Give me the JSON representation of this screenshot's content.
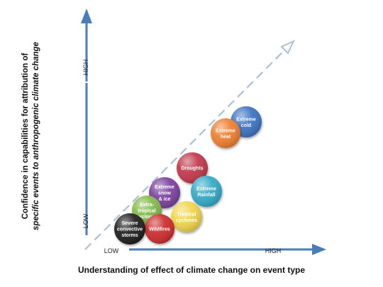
{
  "axes": {
    "y_title_line1": "Confidence in capabilities for attribution of",
    "y_title_line2": "specific events to anthropogenic climate change",
    "x_title": "Understanding of effect of climate change on event type",
    "y_low": "LOW",
    "y_high": "HIGH",
    "x_low": "LOW",
    "x_high": "HIGH"
  },
  "colors": {
    "arrow": "#4a7ebb",
    "diagonal": "#a9bfd8"
  },
  "events": [
    {
      "id": "extreme-cold",
      "lines": [
        "Extreme",
        "cold"
      ],
      "color": "#3a72c2"
    },
    {
      "id": "extreme-heat",
      "lines": [
        "Extreme",
        "heat"
      ],
      "color": "#ee7d2e"
    },
    {
      "id": "droughts",
      "lines": [
        "Droughts"
      ],
      "color": "#c0344a"
    },
    {
      "id": "extreme-rainfall",
      "lines": [
        "Extreme",
        "Rainfall"
      ],
      "color": "#33a9c6"
    },
    {
      "id": "extreme-snow-ice",
      "lines": [
        "Extreme",
        "snow",
        "& ice"
      ],
      "color": "#7a3f9e"
    },
    {
      "id": "extra-tropical-cyclones",
      "lines": [
        "Extra-",
        "tropical",
        "cyclones"
      ],
      "color": "#83b94a"
    },
    {
      "id": "tropical-cyclones",
      "lines": [
        "Tropical",
        "cyclones"
      ],
      "color": "#f0d44b"
    },
    {
      "id": "wildfires",
      "lines": [
        "Wildfires"
      ],
      "color": "#cc2a2a"
    },
    {
      "id": "severe-convective-storms",
      "lines": [
        "Severe",
        "convective",
        "storms"
      ],
      "color": "#1a1a1a"
    }
  ]
}
